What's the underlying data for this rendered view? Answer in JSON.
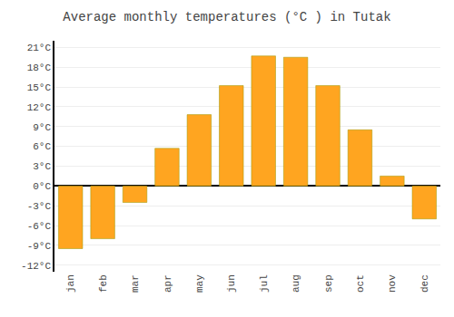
{
  "chart_data": {
    "type": "bar",
    "title": "Average monthly temperatures (°C ) in Tutak",
    "categories": [
      "jan",
      "feb",
      "mar",
      "apr",
      "may",
      "jun",
      "jul",
      "aug",
      "sep",
      "oct",
      "nov",
      "dec"
    ],
    "values": [
      -9.5,
      -8.0,
      -2.5,
      5.7,
      10.8,
      15.2,
      19.7,
      19.5,
      15.2,
      8.5,
      1.5,
      -5.0
    ],
    "color": "#FFA520",
    "ylim": [
      -13,
      22
    ],
    "yticks": [
      {
        "value": -12,
        "label": "-12°C"
      },
      {
        "value": -9,
        "label": "-9°C"
      },
      {
        "value": -6,
        "label": "-6°C"
      },
      {
        "value": -3,
        "label": "-3°C"
      },
      {
        "value": 0,
        "label": "0°C"
      },
      {
        "value": 3,
        "label": "3°C"
      },
      {
        "value": 6,
        "label": "6°C"
      },
      {
        "value": 9,
        "label": "9°C"
      },
      {
        "value": 12,
        "label": "12°C"
      },
      {
        "value": 15,
        "label": "15°C"
      },
      {
        "value": 18,
        "label": "18°C"
      },
      {
        "value": 21,
        "label": "21°C"
      }
    ],
    "grid": true
  }
}
